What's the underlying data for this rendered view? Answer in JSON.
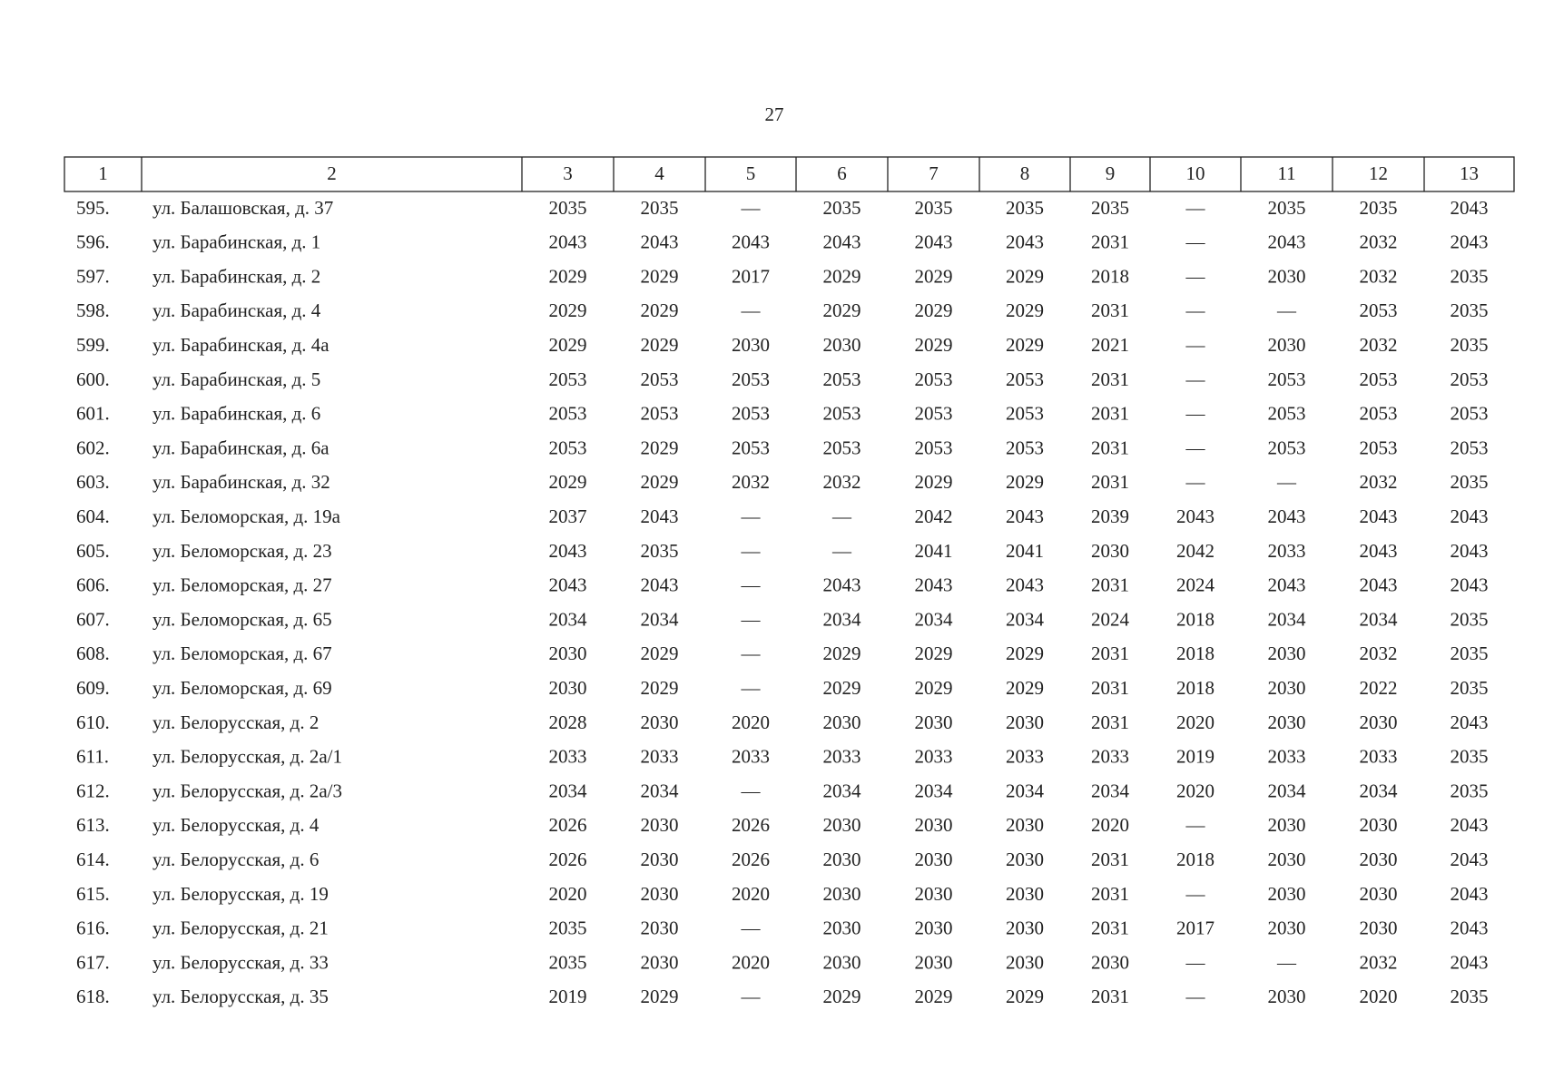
{
  "page_number": "27",
  "table": {
    "header": [
      "1",
      "2",
      "3",
      "4",
      "5",
      "6",
      "7",
      "8",
      "9",
      "10",
      "11",
      "12",
      "13"
    ],
    "rows": [
      [
        "595.",
        "ул. Балашовская, д. 37",
        2035,
        2035,
        "—",
        2035,
        2035,
        2035,
        2035,
        "—",
        2035,
        2035,
        2043
      ],
      [
        "596.",
        "ул. Барабинская, д. 1",
        2043,
        2043,
        2043,
        2043,
        2043,
        2043,
        2031,
        "—",
        2043,
        2032,
        2043
      ],
      [
        "597.",
        "ул. Барабинская, д. 2",
        2029,
        2029,
        2017,
        2029,
        2029,
        2029,
        2018,
        "—",
        2030,
        2032,
        2035
      ],
      [
        "598.",
        "ул. Барабинская, д. 4",
        2029,
        2029,
        "—",
        2029,
        2029,
        2029,
        2031,
        "—",
        "—",
        2053,
        2035
      ],
      [
        "599.",
        "ул. Барабинская, д. 4а",
        2029,
        2029,
        2030,
        2030,
        2029,
        2029,
        2021,
        "—",
        2030,
        2032,
        2035
      ],
      [
        "600.",
        "ул. Барабинская, д. 5",
        2053,
        2053,
        2053,
        2053,
        2053,
        2053,
        2031,
        "—",
        2053,
        2053,
        2053
      ],
      [
        "601.",
        "ул. Барабинская, д. 6",
        2053,
        2053,
        2053,
        2053,
        2053,
        2053,
        2031,
        "—",
        2053,
        2053,
        2053
      ],
      [
        "602.",
        "ул. Барабинская, д. 6а",
        2053,
        2029,
        2053,
        2053,
        2053,
        2053,
        2031,
        "—",
        2053,
        2053,
        2053
      ],
      [
        "603.",
        "ул. Барабинская, д. 32",
        2029,
        2029,
        2032,
        2032,
        2029,
        2029,
        2031,
        "—",
        "—",
        2032,
        2035
      ],
      [
        "604.",
        "ул. Беломорская, д. 19а",
        2037,
        2043,
        "—",
        "—",
        2042,
        2043,
        2039,
        2043,
        2043,
        2043,
        2043
      ],
      [
        "605.",
        "ул. Беломорская, д. 23",
        2043,
        2035,
        "—",
        "—",
        2041,
        2041,
        2030,
        2042,
        2033,
        2043,
        2043
      ],
      [
        "606.",
        "ул. Беломорская, д. 27",
        2043,
        2043,
        "—",
        2043,
        2043,
        2043,
        2031,
        2024,
        2043,
        2043,
        2043
      ],
      [
        "607.",
        "ул. Беломорская, д. 65",
        2034,
        2034,
        "—",
        2034,
        2034,
        2034,
        2024,
        2018,
        2034,
        2034,
        2035
      ],
      [
        "608.",
        "ул. Беломорская, д. 67",
        2030,
        2029,
        "—",
        2029,
        2029,
        2029,
        2031,
        2018,
        2030,
        2032,
        2035
      ],
      [
        "609.",
        "ул. Беломорская, д. 69",
        2030,
        2029,
        "—",
        2029,
        2029,
        2029,
        2031,
        2018,
        2030,
        2022,
        2035
      ],
      [
        "610.",
        "ул. Белорусская, д. 2",
        2028,
        2030,
        2020,
        2030,
        2030,
        2030,
        2031,
        2020,
        2030,
        2030,
        2043
      ],
      [
        "611.",
        "ул. Белорусская, д. 2а/1",
        2033,
        2033,
        2033,
        2033,
        2033,
        2033,
        2033,
        2019,
        2033,
        2033,
        2035
      ],
      [
        "612.",
        "ул. Белорусская, д. 2а/3",
        2034,
        2034,
        "—",
        2034,
        2034,
        2034,
        2034,
        2020,
        2034,
        2034,
        2035
      ],
      [
        "613.",
        "ул. Белорусская, д. 4",
        2026,
        2030,
        2026,
        2030,
        2030,
        2030,
        2020,
        "—",
        2030,
        2030,
        2043
      ],
      [
        "614.",
        "ул. Белорусская, д. 6",
        2026,
        2030,
        2026,
        2030,
        2030,
        2030,
        2031,
        2018,
        2030,
        2030,
        2043
      ],
      [
        "615.",
        "ул. Белорусская, д. 19",
        2020,
        2030,
        2020,
        2030,
        2030,
        2030,
        2031,
        "—",
        2030,
        2030,
        2043
      ],
      [
        "616.",
        "ул. Белорусская, д. 21",
        2035,
        2030,
        "—",
        2030,
        2030,
        2030,
        2031,
        2017,
        2030,
        2030,
        2043
      ],
      [
        "617.",
        "ул. Белорусская, д. 33",
        2035,
        2030,
        2020,
        2030,
        2030,
        2030,
        2030,
        "—",
        "—",
        2032,
        2043
      ],
      [
        "618.",
        "ул. Белорусская, д. 35",
        2019,
        2029,
        "—",
        2029,
        2029,
        2029,
        2031,
        "—",
        2030,
        2020,
        2035
      ]
    ]
  }
}
